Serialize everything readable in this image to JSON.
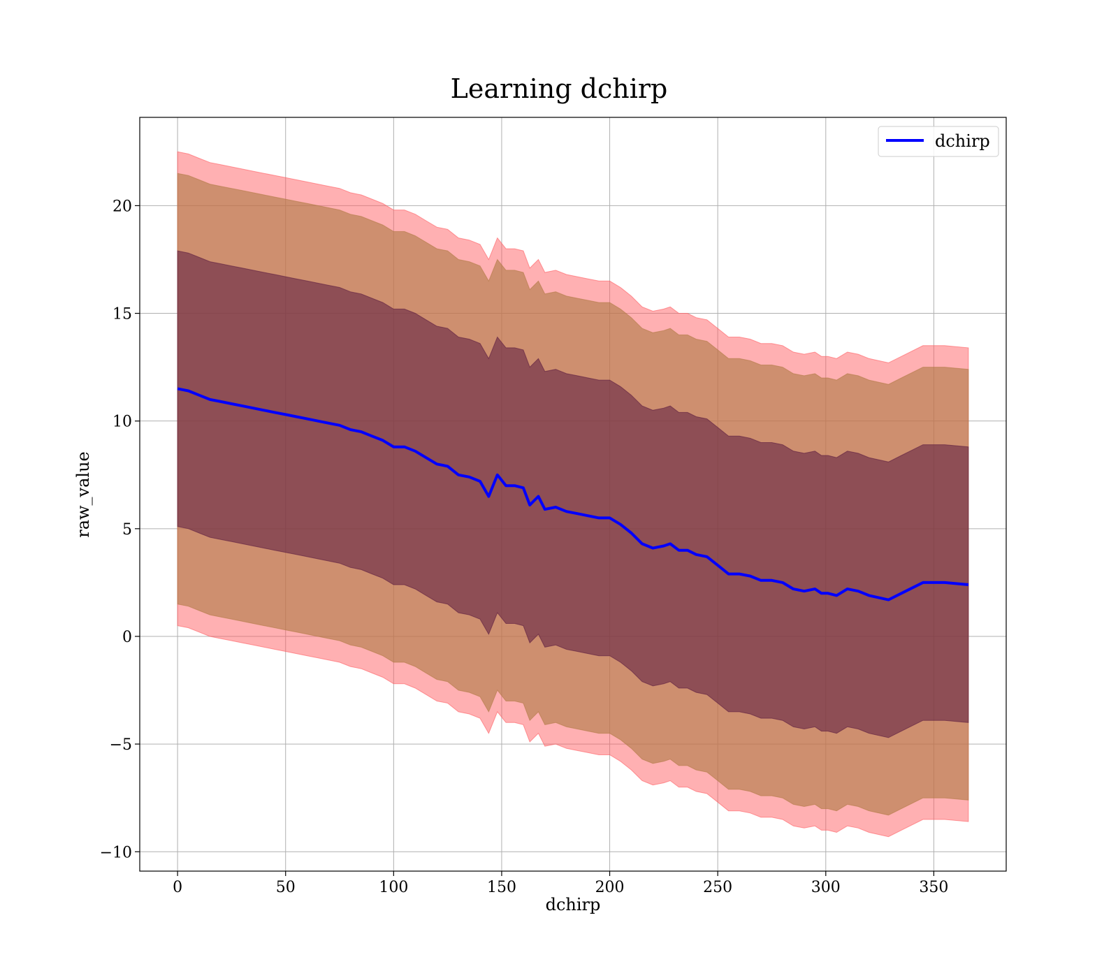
{
  "chart_data": {
    "type": "line",
    "title": "Learning dchirp",
    "xlabel": "dchirp",
    "ylabel": "raw_value",
    "xlim": [
      -17.5,
      383.5
    ],
    "ylim": [
      -10.9,
      24.1
    ],
    "xticks": [
      0,
      50,
      100,
      150,
      200,
      250,
      300,
      350
    ],
    "xtick_labels": [
      "0",
      "50",
      "100",
      "150",
      "200",
      "250",
      "300",
      "350"
    ],
    "yticks": [
      -10,
      -5,
      0,
      5,
      10,
      15,
      20
    ],
    "ytick_labels": [
      "−10",
      "−5",
      "0",
      "5",
      "10",
      "15",
      "20"
    ],
    "grid": true,
    "legend": {
      "position": "top-right",
      "entries": [
        "dchirp"
      ]
    },
    "colors": {
      "line": "#0000ff",
      "band_outer": "#ff5a5f",
      "band_middle": "#b07a45",
      "band_inner": "#5a1a40"
    },
    "series": [
      {
        "name": "dchirp",
        "x": [
          0,
          5,
          10,
          15,
          20,
          25,
          30,
          35,
          40,
          45,
          50,
          55,
          60,
          65,
          70,
          75,
          80,
          85,
          90,
          95,
          100,
          105,
          110,
          115,
          120,
          125,
          130,
          135,
          140,
          144,
          148,
          152,
          156,
          160,
          163,
          167,
          170,
          175,
          180,
          185,
          190,
          195,
          200,
          205,
          210,
          215,
          220,
          225,
          228,
          232,
          236,
          240,
          245,
          250,
          255,
          260,
          265,
          270,
          275,
          280,
          285,
          290,
          295,
          298,
          301,
          305,
          310,
          315,
          320,
          329,
          335,
          345,
          355,
          366
        ],
        "y": [
          11.5,
          11.4,
          11.2,
          11.0,
          10.9,
          10.8,
          10.7,
          10.6,
          10.5,
          10.4,
          10.3,
          10.2,
          10.1,
          10.0,
          9.9,
          9.8,
          9.6,
          9.5,
          9.3,
          9.1,
          8.8,
          8.8,
          8.6,
          8.3,
          8.0,
          7.9,
          7.5,
          7.4,
          7.2,
          6.5,
          7.5,
          7.0,
          7.0,
          6.9,
          6.1,
          6.5,
          5.9,
          6.0,
          5.8,
          5.7,
          5.6,
          5.5,
          5.5,
          5.2,
          4.8,
          4.3,
          4.1,
          4.2,
          4.3,
          4.0,
          4.0,
          3.8,
          3.7,
          3.3,
          2.9,
          2.9,
          2.8,
          2.6,
          2.6,
          2.5,
          2.2,
          2.1,
          2.2,
          2.0,
          2.0,
          1.9,
          2.2,
          2.1,
          1.9,
          1.7,
          2.0,
          2.5,
          2.5,
          2.4
        ]
      }
    ],
    "bands": [
      {
        "offsets": [
          -11.0,
          11.0
        ]
      },
      {
        "offsets": [
          -10.0,
          10.0
        ]
      },
      {
        "offsets": [
          -6.4,
          6.4
        ]
      }
    ]
  }
}
